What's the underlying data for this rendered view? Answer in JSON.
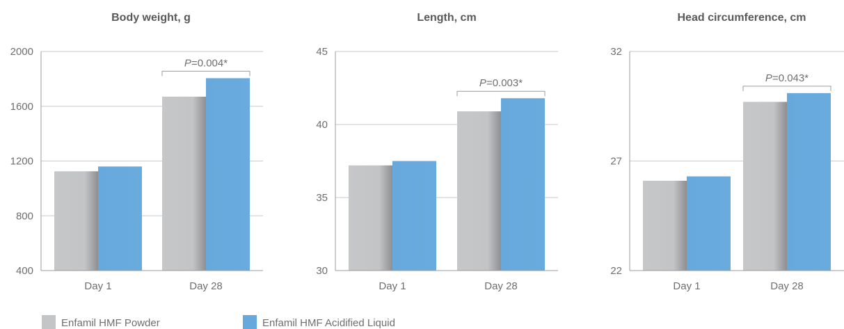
{
  "legend": [
    {
      "label": "Enfamil HMF Powder",
      "color": "#c4c5c7"
    },
    {
      "label": "Enfamil HMF Acidified Liquid",
      "color": "#67a9dc"
    }
  ],
  "chart_data": [
    {
      "type": "bar",
      "title": "Body weight, g",
      "categories": [
        "Day 1",
        "Day 28"
      ],
      "series": [
        {
          "name": "Enfamil HMF Powder",
          "values": [
            1125,
            1670
          ]
        },
        {
          "name": "Enfamil HMF Acidified Liquid",
          "values": [
            1160,
            1805
          ]
        }
      ],
      "ylim": [
        400,
        2000
      ],
      "yticks": [
        "400",
        "800",
        "1200",
        "1600",
        "2000"
      ],
      "ytick_values": [
        400,
        800,
        1200,
        1600,
        2000
      ],
      "annotation": {
        "category": "Day 28",
        "p_label": "P",
        "p_value": "=0.004*"
      },
      "grid": true
    },
    {
      "type": "bar",
      "title": "Length, cm",
      "categories": [
        "Day 1",
        "Day 28"
      ],
      "series": [
        {
          "name": "Enfamil HMF Powder",
          "values": [
            37.2,
            40.9
          ]
        },
        {
          "name": "Enfamil HMF Acidified Liquid",
          "values": [
            37.5,
            41.8
          ]
        }
      ],
      "ylim": [
        30,
        45
      ],
      "yticks": [
        "30",
        "35",
        "40",
        "45"
      ],
      "ytick_values": [
        30,
        35,
        40,
        45
      ],
      "annotation": {
        "category": "Day 28",
        "p_label": "P",
        "p_value": "=0.003*"
      },
      "grid": true
    },
    {
      "type": "bar",
      "title": "Head circumference, cm",
      "categories": [
        "Day 1",
        "Day 28"
      ],
      "series": [
        {
          "name": "Enfamil HMF Powder",
          "values": [
            26.1,
            29.7
          ]
        },
        {
          "name": "Enfamil HMF Acidified Liquid",
          "values": [
            26.3,
            30.1
          ]
        }
      ],
      "ylim": [
        22,
        32
      ],
      "yticks": [
        "22",
        "27",
        "32"
      ],
      "ytick_values": [
        22,
        27,
        32
      ],
      "annotation": {
        "category": "Day 28",
        "p_label": "P",
        "p_value": "=0.043*"
      },
      "grid": true
    }
  ]
}
